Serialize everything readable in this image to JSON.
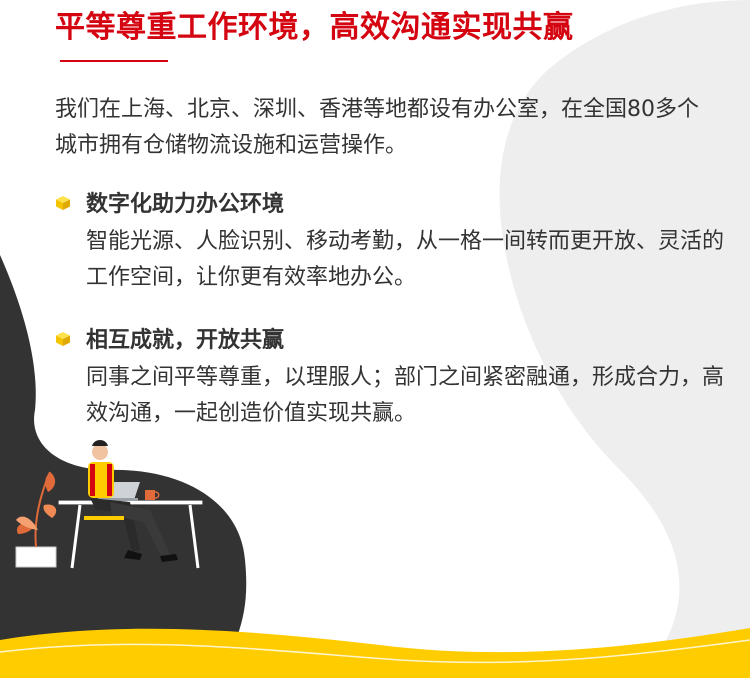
{
  "page": {
    "title": "平等尊重工作环境，高效沟通实现共赢",
    "intro": "我们在上海、北京、深圳、香港等地都设有办公室，在全国80多个城市拥有仓储物流设施和运营操作。"
  },
  "features": [
    {
      "title": "数字化助力办公环境",
      "description": "智能光源、人脸识别、移动考勤，从一格一间转而更开放、灵活的工作空间，让你更有效率地办公。"
    },
    {
      "title": "相互成就，开放共赢",
      "description": "同事之间平等尊重，以理服人；部门之间紧密融通，形成合力，高效沟通，一起创造价值实现共赢。"
    }
  ],
  "icons": {
    "bullet": "yellow-cube-icon",
    "illustration": "person-at-desk-illustration"
  },
  "colors": {
    "accent_red": "#d40511",
    "accent_yellow": "#ffcc00",
    "dark_shape": "#333333",
    "light_shape": "#eeeeee",
    "text": "#333333"
  }
}
